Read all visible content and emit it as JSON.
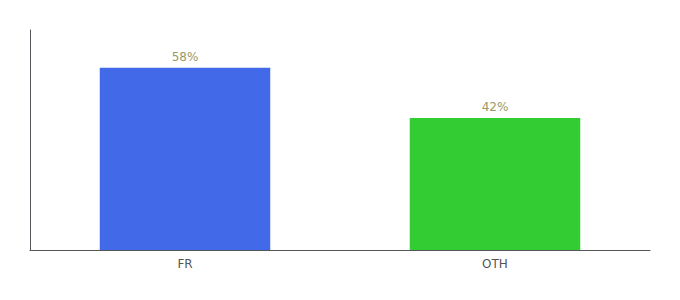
{
  "chart_data": {
    "type": "bar",
    "categories": [
      "FR",
      "OTH"
    ],
    "values": [
      58,
      42
    ],
    "value_labels": [
      "58%",
      "42%"
    ],
    "data_labels": true,
    "colors": [
      "#4169e8",
      "#33cc33"
    ],
    "ylim": [
      0,
      70
    ],
    "grid": false,
    "tick_labels": "x"
  }
}
